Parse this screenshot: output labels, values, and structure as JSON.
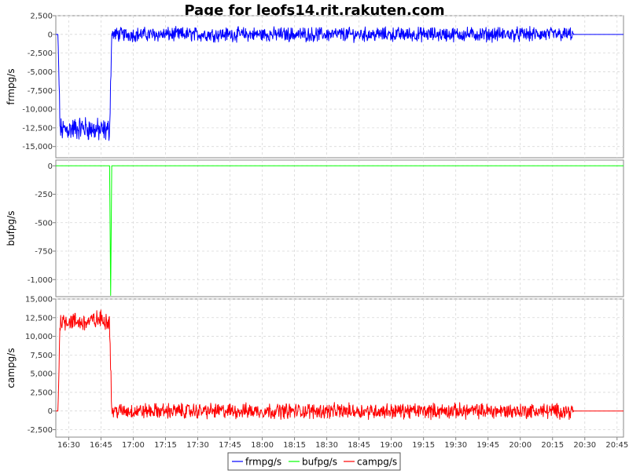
{
  "chart_data": {
    "type": "line",
    "title": "Page for leofs14.rit.rakuten.com",
    "x_ticks": [
      "16:30",
      "16:45",
      "17:00",
      "17:15",
      "17:30",
      "17:45",
      "18:00",
      "18:15",
      "18:30",
      "18:45",
      "19:00",
      "19:15",
      "19:30",
      "19:45",
      "20:00",
      "20:15",
      "20:30",
      "20:45"
    ],
    "x_range": [
      "16:24",
      "20:48"
    ],
    "grid": true,
    "legend_position": "bottom",
    "colors": {
      "frmpg/s": "#0000ff",
      "bufpg/s": "#00ff00",
      "campg/s": "#ff0000"
    },
    "panels": [
      {
        "ylabel": "frmpg/s",
        "y_ticks": [
          "2,500",
          "0",
          "-2,500",
          "-5,000",
          "-7,500",
          "-10,000",
          "-12,500",
          "-15,000"
        ],
        "ylim": [
          -16500,
          2500
        ],
        "series": [
          {
            "name": "frmpg/s",
            "color": "#0000ff",
            "x": [
              "16:24",
              "16:25",
              "16:26",
              "16:37",
              "16:45",
              "16:49",
              "16:50",
              "17:00",
              "17:30",
              "18:00",
              "18:30",
              "19:00",
              "19:30",
              "20:00",
              "20:24",
              "20:25",
              "20:48"
            ],
            "values": [
              0,
              0,
              -12800,
              -12500,
              -12900,
              -12800,
              0,
              0,
              0,
              0,
              0,
              0,
              0,
              0,
              0,
              0,
              0
            ],
            "noise_amplitude": [
              0,
              0,
              2500,
              2500,
              2500,
              2500,
              1500,
              1500,
              1500,
              1500,
              1500,
              1500,
              1500,
              1500,
              1500,
              0,
              0
            ]
          }
        ]
      },
      {
        "ylabel": "bufpg/s",
        "y_ticks": [
          "0",
          "-250",
          "-500",
          "-750",
          "-1,000"
        ],
        "ylim": [
          -1150,
          50
        ],
        "series": [
          {
            "name": "bufpg/s",
            "color": "#00ff00",
            "x": [
              "16:24",
              "16:49",
              "16:49.5",
              "16:50",
              "20:48"
            ],
            "values": [
              0,
              0,
              -1140,
              0,
              0
            ]
          }
        ]
      },
      {
        "ylabel": "campg/s",
        "y_ticks": [
          "15,000",
          "12,500",
          "10,000",
          "7,500",
          "5,000",
          "2,500",
          "0",
          "-2,500"
        ],
        "ylim": [
          -3500,
          15000
        ],
        "series": [
          {
            "name": "campg/s",
            "color": "#ff0000",
            "x": [
              "16:24",
              "16:25",
              "16:26",
              "16:37",
              "16:45",
              "16:49",
              "16:50",
              "17:00",
              "17:30",
              "18:00",
              "18:30",
              "19:00",
              "19:30",
              "20:00",
              "20:24",
              "20:25",
              "20:48"
            ],
            "values": [
              0,
              0,
              12200,
              11800,
              12300,
              12100,
              0,
              0,
              0,
              0,
              0,
              0,
              0,
              0,
              0,
              0,
              0
            ],
            "noise_amplitude": [
              0,
              0,
              2000,
              2000,
              2000,
              2000,
              1600,
              1600,
              1600,
              1600,
              1600,
              1600,
              1600,
              1600,
              1600,
              0,
              0
            ]
          }
        ]
      }
    ],
    "legend": [
      "frmpg/s",
      "bufpg/s",
      "campg/s"
    ]
  }
}
